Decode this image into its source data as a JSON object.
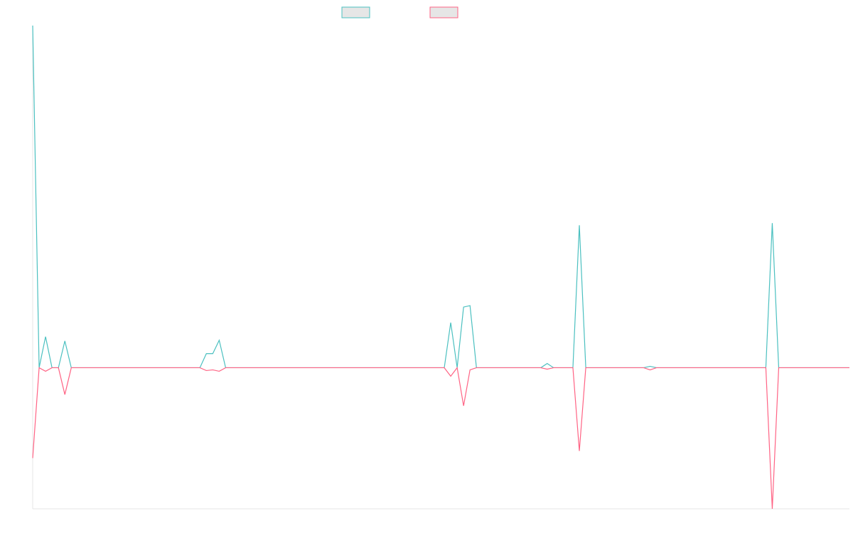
{
  "colors": {
    "series_a": "#4bc0c0",
    "series_b": "#ff6384",
    "legend_fill": "#e6e6e6",
    "axis": "#e5e5e5",
    "background": "#ffffff"
  },
  "chart_data": {
    "type": "line",
    "title": "",
    "xlabel": "",
    "ylabel": "",
    "grid": false,
    "legend": {
      "position": "top-center",
      "labels_visible": false
    },
    "ylim": [
      -200,
      485
    ],
    "x": [
      0,
      1,
      2,
      3,
      4,
      5,
      6,
      7,
      8,
      9,
      10,
      11,
      12,
      13,
      14,
      15,
      16,
      17,
      18,
      19,
      20,
      21,
      22,
      23,
      24,
      25,
      26,
      27,
      28,
      29,
      30,
      31,
      32,
      33,
      34,
      35,
      36,
      37,
      38,
      39,
      40,
      41,
      42,
      43,
      44,
      45,
      46,
      47,
      48,
      49,
      50,
      51,
      52,
      53,
      54,
      55,
      56,
      57,
      58,
      59,
      60,
      61,
      62,
      63,
      64,
      65,
      66,
      67,
      68,
      69,
      70,
      71,
      72,
      73,
      74,
      75,
      76,
      77,
      78,
      79,
      80,
      81,
      82,
      83,
      84,
      85,
      86,
      87,
      88,
      89,
      90,
      91,
      92,
      93,
      94,
      95,
      96,
      97,
      98,
      99,
      100,
      101,
      102,
      103,
      104,
      105,
      106,
      107,
      108,
      109,
      110,
      111,
      112,
      113,
      114,
      115,
      116,
      117,
      118,
      119,
      120,
      121,
      122,
      123,
      124,
      125,
      126,
      127
    ],
    "series": [
      {
        "color": "#4bc0c0",
        "values": [
          485,
          0,
          44,
          0,
          0,
          38,
          0,
          0,
          0,
          0,
          0,
          0,
          0,
          0,
          0,
          0,
          0,
          0,
          0,
          0,
          0,
          0,
          0,
          0,
          0,
          0,
          0,
          20,
          20,
          39,
          0,
          0,
          0,
          0,
          0,
          0,
          0,
          0,
          0,
          0,
          0,
          0,
          0,
          0,
          0,
          0,
          0,
          0,
          0,
          0,
          0,
          0,
          0,
          0,
          0,
          0,
          0,
          0,
          0,
          0,
          0,
          0,
          0,
          0,
          0,
          64,
          0,
          86,
          88,
          0,
          0,
          0,
          0,
          0,
          0,
          0,
          0,
          0,
          0,
          0,
          6,
          0,
          0,
          0,
          0,
          202,
          0,
          0,
          0,
          0,
          0,
          0,
          0,
          0,
          0,
          0,
          2,
          0,
          0,
          0,
          0,
          0,
          0,
          0,
          0,
          0,
          0,
          0,
          0,
          0,
          0,
          0,
          0,
          0,
          0,
          205,
          0,
          0,
          0,
          0,
          0,
          0,
          0,
          0,
          0,
          0,
          0,
          0
        ]
      },
      {
        "color": "#ff6384",
        "values": [
          -128,
          0,
          -5,
          0,
          0,
          -38,
          0,
          0,
          0,
          0,
          0,
          0,
          0,
          0,
          0,
          0,
          0,
          0,
          0,
          0,
          0,
          0,
          0,
          0,
          0,
          0,
          0,
          -4,
          -3,
          -5,
          0,
          0,
          0,
          0,
          0,
          0,
          0,
          0,
          0,
          0,
          0,
          0,
          0,
          0,
          0,
          0,
          0,
          0,
          0,
          0,
          0,
          0,
          0,
          0,
          0,
          0,
          0,
          0,
          0,
          0,
          0,
          0,
          0,
          0,
          0,
          -12,
          0,
          -54,
          -3,
          0,
          0,
          0,
          0,
          0,
          0,
          0,
          0,
          0,
          0,
          0,
          -2,
          0,
          0,
          0,
          0,
          -118,
          0,
          0,
          0,
          0,
          0,
          0,
          0,
          0,
          0,
          0,
          -3,
          0,
          0,
          0,
          0,
          0,
          0,
          0,
          0,
          0,
          0,
          0,
          0,
          0,
          0,
          0,
          0,
          0,
          0,
          -200,
          0,
          0,
          0,
          0,
          0,
          0,
          0,
          0,
          0,
          0,
          0,
          0
        ]
      }
    ]
  }
}
